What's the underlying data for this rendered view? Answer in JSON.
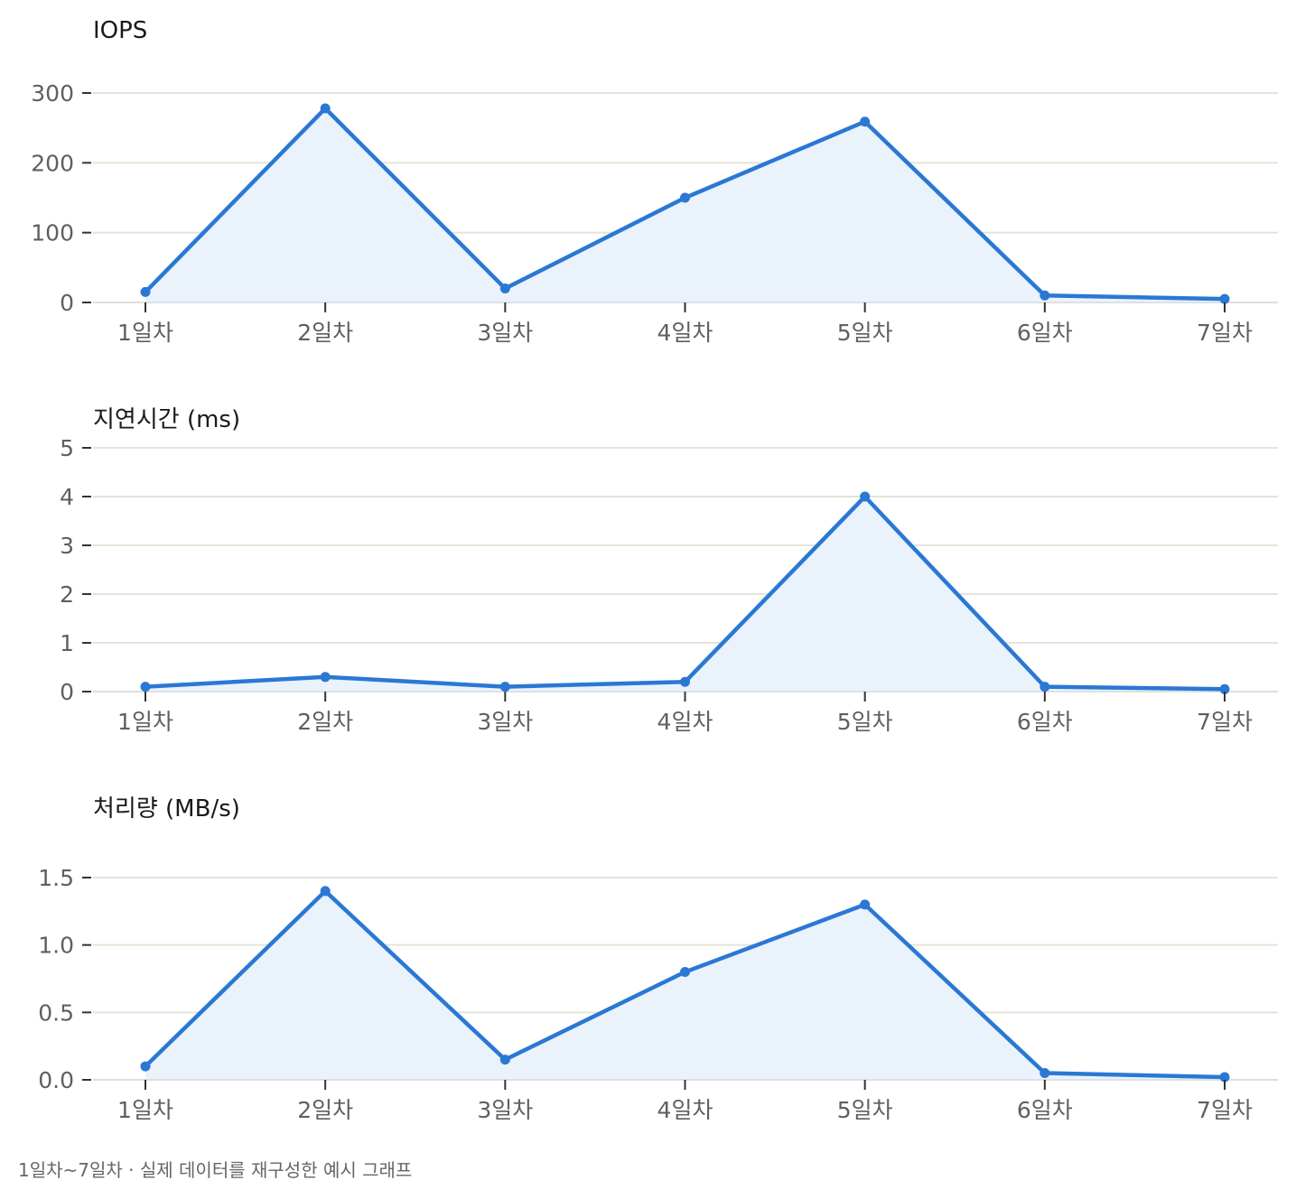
{
  "colors": {
    "line": "#2a78d4",
    "area_fill": "#eaf2fb",
    "grid": "#e4e4d8",
    "axis_tick": "#333333",
    "tick_text": "#5f5f5f",
    "title_text": "#1a1a1a"
  },
  "chart_data": [
    {
      "type": "area",
      "title": "IOPS",
      "categories": [
        "1일차",
        "2일차",
        "3일차",
        "4일차",
        "5일차",
        "6일차",
        "7일차"
      ],
      "values": [
        15,
        278,
        20,
        150,
        259,
        10,
        5
      ],
      "ylim": [
        0,
        300
      ],
      "yticks": [
        "0",
        "100",
        "200",
        "300"
      ],
      "grid": true
    },
    {
      "type": "area",
      "title": "지연시간 (ms)",
      "categories": [
        "1일차",
        "2일차",
        "3일차",
        "4일차",
        "5일차",
        "6일차",
        "7일차"
      ],
      "values": [
        0.1,
        0.3,
        0.1,
        0.2,
        4.0,
        0.1,
        0.05
      ],
      "ylim": [
        0,
        5
      ],
      "yticks": [
        "0",
        "1",
        "2",
        "3",
        "4",
        "5"
      ],
      "grid": true
    },
    {
      "type": "area",
      "title": "처리량 (MB/s)",
      "categories": [
        "1일차",
        "2일차",
        "3일차",
        "4일차",
        "5일차",
        "6일차",
        "7일차"
      ],
      "values": [
        0.1,
        1.4,
        0.15,
        0.8,
        1.3,
        0.05,
        0.02
      ],
      "ylim": [
        0,
        1.5
      ],
      "yticks": [
        "0.0",
        "0.5",
        "1.0",
        "1.5"
      ],
      "grid": true
    }
  ],
  "footer": {
    "note": "1일차~7일차 · 실제 데이터를 재구성한 예시 그래프"
  }
}
